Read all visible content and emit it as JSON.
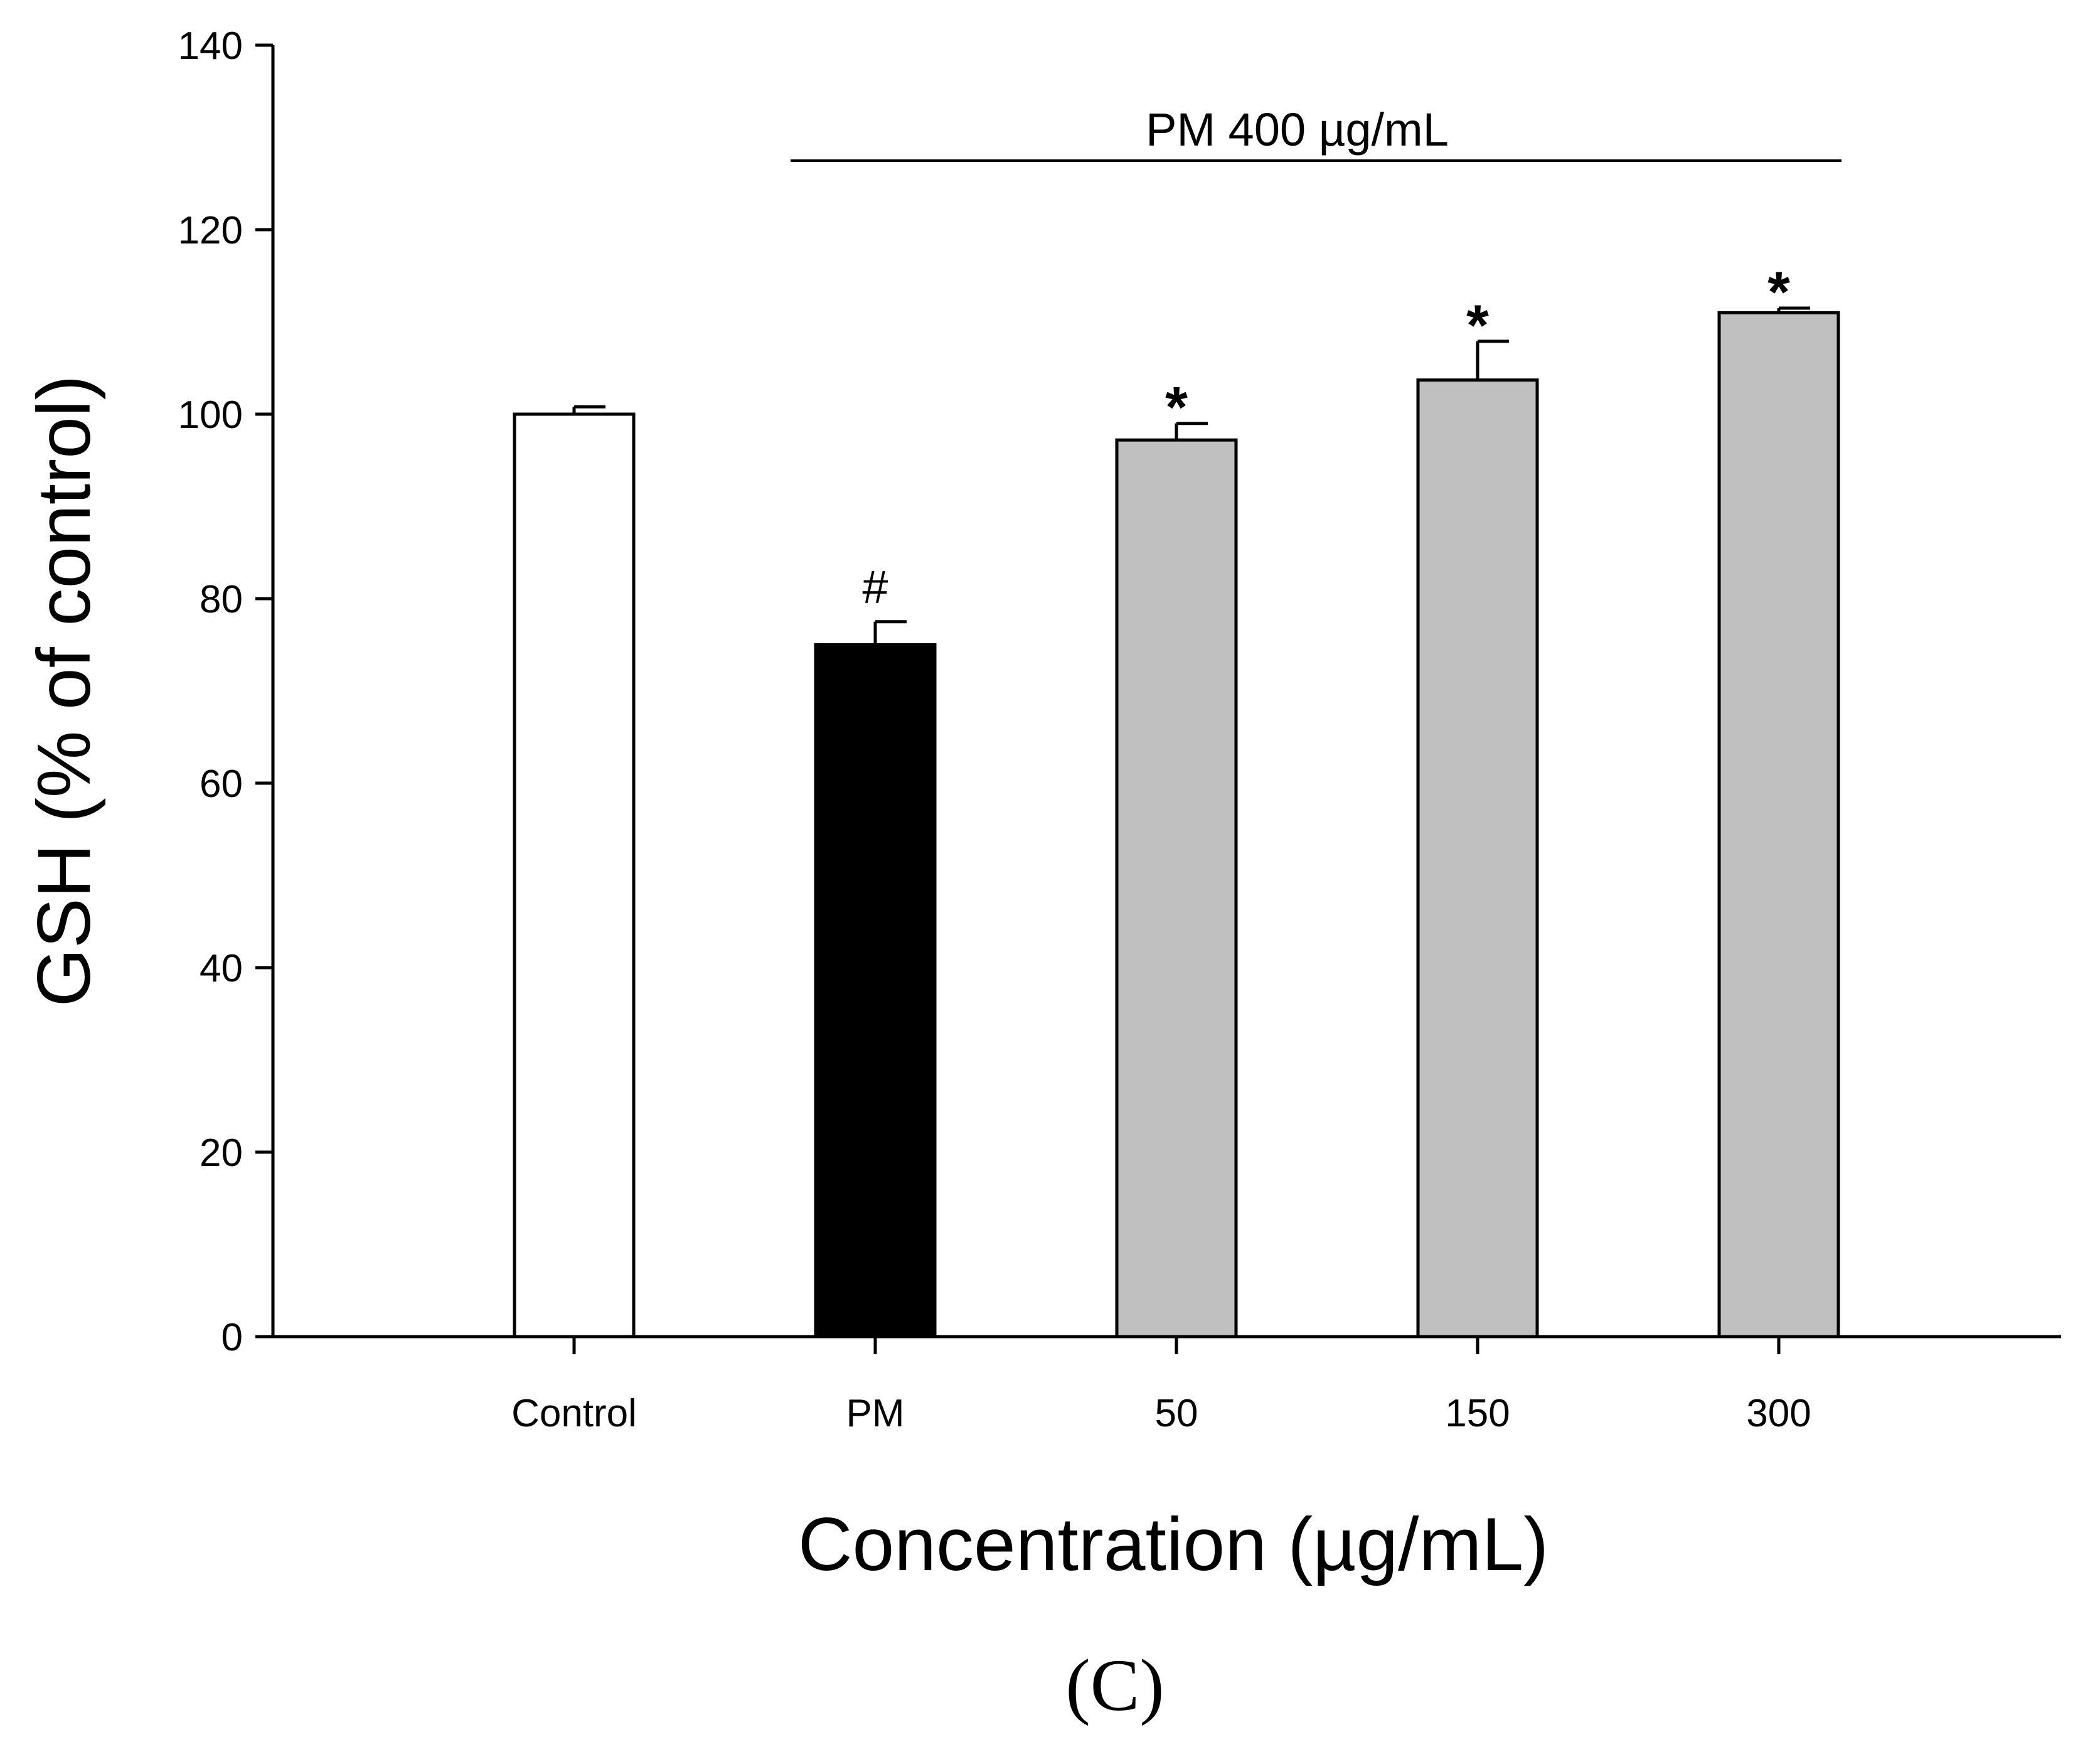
{
  "chart_data": {
    "type": "bar",
    "categories": [
      "Control",
      "PM",
      "50",
      "150",
      "300"
    ],
    "values": [
      100,
      75,
      97.2,
      103.7,
      111
    ],
    "errors": [
      0.8,
      2.5,
      1.8,
      4.2,
      0.5
    ],
    "bar_colors": [
      "#ffffff",
      "#000000",
      "#c0c0c0",
      "#c0c0c0",
      "#c0c0c0"
    ],
    "significance": [
      "",
      "#",
      "*",
      "*",
      "*"
    ],
    "xlabel": "Concentration (µg/mL)",
    "ylabel": "GSH (% of control)",
    "ylim": [
      0,
      140
    ],
    "yticks": [
      0,
      20,
      40,
      60,
      80,
      100,
      120,
      140
    ],
    "bracket": {
      "label": "PM 400 µg/mL",
      "from_category": "PM",
      "to_category": "300"
    },
    "panel_label": "(C)",
    "grid": false
  }
}
